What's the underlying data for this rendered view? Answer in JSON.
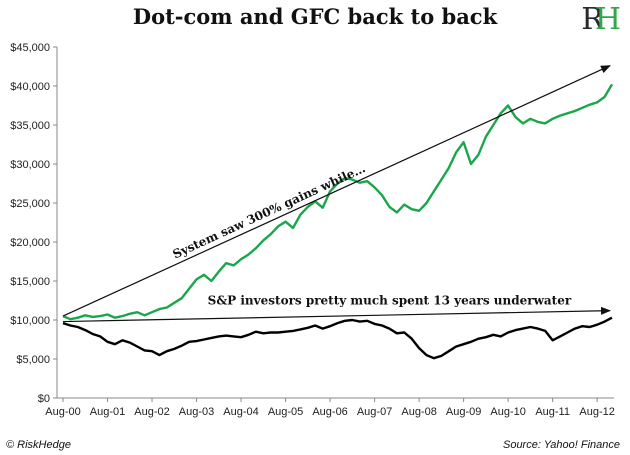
{
  "header": {
    "title": "Dot-com and GFC back to back",
    "logo_text": "RH"
  },
  "footer": {
    "copyright": "© RiskHedge",
    "source": "Source: Yahoo! Finance"
  },
  "colors": {
    "system": "#1aa64a",
    "sp": "#000000",
    "axis": "#888888"
  },
  "chart_data": {
    "type": "line",
    "title": "Dot-com and GFC back to back",
    "xlabel": "",
    "ylabel": "",
    "ylim": [
      0,
      45000
    ],
    "yticks": [
      "$0",
      "$5,000",
      "$10,000",
      "$15,000",
      "$20,000",
      "$25,000",
      "$30,000",
      "$35,000",
      "$40,000",
      "$45,000"
    ],
    "xticks": [
      "Aug-00",
      "Aug-01",
      "Aug-02",
      "Aug-03",
      "Aug-04",
      "Aug-05",
      "Aug-06",
      "Aug-07",
      "Aug-08",
      "Aug-09",
      "Aug-10",
      "Aug-11",
      "Aug-12"
    ],
    "grid": false,
    "series": [
      {
        "key": "system",
        "x": [
          "Aug-00",
          "Oct-00",
          "Dec-00",
          "Feb-01",
          "Apr-01",
          "Jun-01",
          "Aug-01",
          "Oct-01",
          "Dec-01",
          "Feb-02",
          "Apr-02",
          "Jun-02",
          "Aug-02",
          "Oct-02",
          "Dec-02",
          "Feb-03",
          "Apr-03",
          "Jun-03",
          "Aug-03",
          "Oct-03",
          "Dec-03",
          "Feb-04",
          "Apr-04",
          "Jun-04",
          "Aug-04",
          "Oct-04",
          "Dec-04",
          "Feb-05",
          "Apr-05",
          "Jun-05",
          "Aug-05",
          "Oct-05",
          "Dec-05",
          "Feb-06",
          "Apr-06",
          "Jun-06",
          "Aug-06",
          "Oct-06",
          "Dec-06",
          "Feb-07",
          "Apr-07",
          "Jun-07",
          "Aug-07",
          "Oct-07",
          "Dec-07",
          "Feb-08",
          "Apr-08",
          "Jun-08",
          "Aug-08",
          "Oct-08",
          "Dec-08",
          "Feb-09",
          "Apr-09",
          "Jun-09",
          "Aug-09",
          "Oct-09",
          "Dec-09",
          "Feb-10",
          "Apr-10",
          "Jun-10",
          "Aug-10",
          "Oct-10",
          "Dec-10",
          "Feb-11",
          "Apr-11",
          "Jun-11",
          "Aug-11",
          "Oct-11",
          "Dec-11",
          "Feb-12",
          "Apr-12",
          "Jun-12",
          "Aug-12",
          "Oct-12",
          "Dec-12"
        ],
        "values": [
          10500,
          10100,
          10300,
          10600,
          10400,
          10500,
          10700,
          10300,
          10500,
          10800,
          11000,
          10600,
          11000,
          11400,
          11600,
          12200,
          12800,
          14000,
          15200,
          15800,
          15000,
          16200,
          17300,
          17000,
          17800,
          18400,
          19200,
          20200,
          21000,
          22000,
          22600,
          21800,
          23500,
          24500,
          25200,
          24400,
          26500,
          27500,
          28200,
          28000,
          27600,
          27800,
          27000,
          26000,
          24500,
          23800,
          24800,
          24200,
          24000,
          25000,
          26500,
          28000,
          29500,
          31500,
          32800,
          30000,
          31200,
          33500,
          35000,
          36500,
          37500,
          36000,
          35200,
          35800,
          35400,
          35200,
          35800,
          36200,
          36500,
          36800,
          37200,
          37600,
          37900,
          38600,
          40200
        ]
      },
      {
        "key": "sp",
        "x": [
          "Aug-00",
          "Oct-00",
          "Dec-00",
          "Feb-01",
          "Apr-01",
          "Jun-01",
          "Aug-01",
          "Oct-01",
          "Dec-01",
          "Feb-02",
          "Apr-02",
          "Jun-02",
          "Aug-02",
          "Oct-02",
          "Dec-02",
          "Feb-03",
          "Apr-03",
          "Jun-03",
          "Aug-03",
          "Oct-03",
          "Dec-03",
          "Feb-04",
          "Apr-04",
          "Jun-04",
          "Aug-04",
          "Oct-04",
          "Dec-04",
          "Feb-05",
          "Apr-05",
          "Jun-05",
          "Aug-05",
          "Oct-05",
          "Dec-05",
          "Feb-06",
          "Apr-06",
          "Jun-06",
          "Aug-06",
          "Oct-06",
          "Dec-06",
          "Feb-07",
          "Apr-07",
          "Jun-07",
          "Aug-07",
          "Oct-07",
          "Dec-07",
          "Feb-08",
          "Apr-08",
          "Jun-08",
          "Aug-08",
          "Oct-08",
          "Dec-08",
          "Feb-09",
          "Apr-09",
          "Jun-09",
          "Aug-09",
          "Oct-09",
          "Dec-09",
          "Feb-10",
          "Apr-10",
          "Jun-10",
          "Aug-10",
          "Oct-10",
          "Dec-10",
          "Feb-11",
          "Apr-11",
          "Jun-11",
          "Aug-11",
          "Oct-11",
          "Dec-11",
          "Feb-12",
          "Apr-12",
          "Jun-12",
          "Aug-12",
          "Oct-12",
          "Dec-12"
        ],
        "values": [
          9600,
          9300,
          9100,
          8700,
          8200,
          7900,
          7200,
          6900,
          7400,
          7100,
          6600,
          6100,
          6000,
          5500,
          6000,
          6300,
          6700,
          7200,
          7300,
          7500,
          7700,
          7900,
          8000,
          7900,
          7800,
          8100,
          8500,
          8300,
          8400,
          8400,
          8500,
          8600,
          8800,
          9000,
          9300,
          8900,
          9200,
          9600,
          9900,
          10000,
          9800,
          9900,
          9500,
          9300,
          8900,
          8300,
          8400,
          7600,
          6400,
          5500,
          5100,
          5400,
          6000,
          6600,
          6900,
          7200,
          7600,
          7800,
          8100,
          7900,
          8400,
          8700,
          8900,
          9100,
          8900,
          8600,
          7400,
          7900,
          8400,
          8900,
          9200,
          9100,
          9400,
          9800,
          10300
        ]
      }
    ],
    "annotations": [
      {
        "key": "gains",
        "text": "System saw 300% gains while…"
      },
      {
        "key": "underwater",
        "text": "S&P investors pretty much spent 13 years underwater"
      }
    ]
  }
}
